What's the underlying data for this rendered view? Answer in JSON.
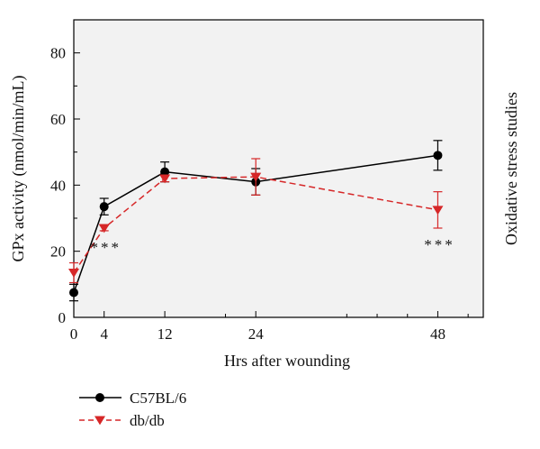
{
  "chart_data": {
    "type": "line",
    "xlabel": "Hrs after wounding",
    "ylabel": "GPx activity (nmol/min/mL)",
    "side_label": "Oxidative stress studies",
    "xlim": [
      0,
      54
    ],
    "ylim": [
      0,
      90
    ],
    "x_ticks": [
      0,
      4,
      12,
      24,
      48
    ],
    "x_minor_ticks": [
      20,
      36,
      40,
      44,
      52
    ],
    "y_ticks": [
      0,
      20,
      40,
      60,
      80
    ],
    "y_minor_ticks": [
      10,
      30,
      50,
      70
    ],
    "grid": false,
    "legend_position": "bottom-left",
    "series": [
      {
        "name": "C57BL/6",
        "color": "#000000",
        "line_style": "solid",
        "marker": "circle",
        "x": [
          0,
          4,
          12,
          24,
          48
        ],
        "values": [
          7.5,
          33.5,
          44.0,
          41.0,
          49.0
        ],
        "error": [
          2.5,
          2.5,
          3.0,
          4.0,
          4.5
        ]
      },
      {
        "name": "db/db",
        "color": "#d62728",
        "line_style": "dashed",
        "marker": "triangle-down",
        "x": [
          0,
          4,
          12,
          24,
          48
        ],
        "values": [
          13.5,
          27.0,
          42.0,
          42.5,
          32.5
        ],
        "error": [
          3.0,
          0.8,
          1.0,
          5.5,
          5.5
        ]
      }
    ],
    "annotations": [
      {
        "text": "***",
        "x": 4
      },
      {
        "text": "***",
        "x": 48
      }
    ]
  }
}
